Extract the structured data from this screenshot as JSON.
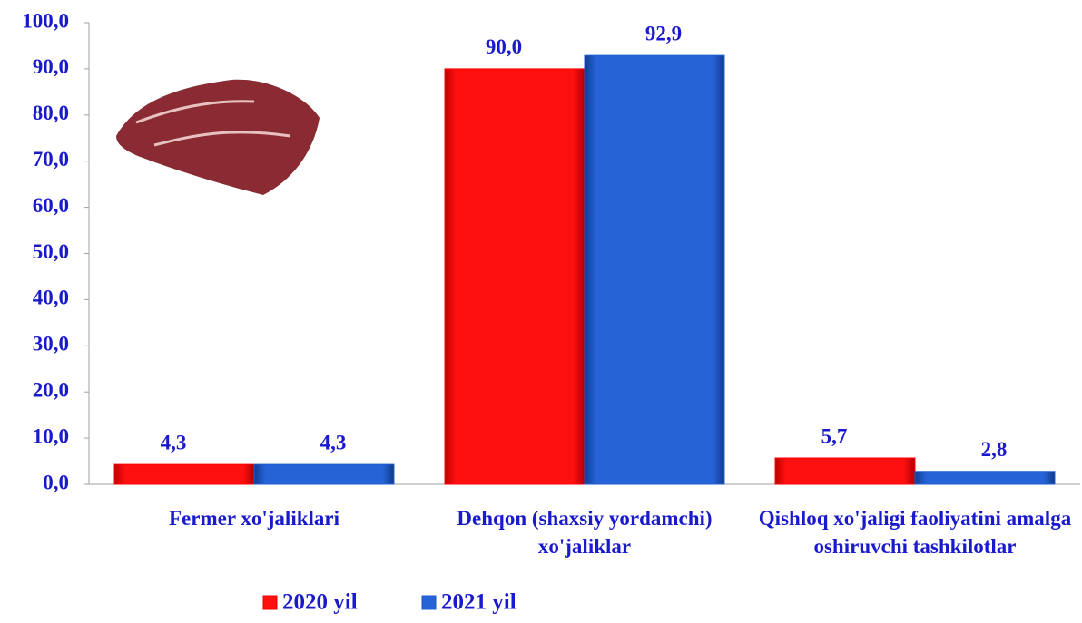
{
  "chart_data": {
    "type": "bar",
    "categories": [
      "Fermer xo'jaliklari",
      "Dehqon (shaxsiy yordamchi) xo'jaliklar",
      "Qishloq xo'jaligi faoliyatini amalga oshiruvchi tashkilotlar"
    ],
    "series": [
      {
        "name": "2020 yil",
        "color": "#ff0000",
        "values": [
          4.3,
          90.0,
          5.7
        ],
        "value_labels": [
          "4,3",
          "90,0",
          "5,7"
        ]
      },
      {
        "name": "2021 yil",
        "color": "#1f5fd0",
        "values": [
          4.3,
          92.9,
          2.8
        ],
        "value_labels": [
          "4,3",
          "92,9",
          "2,8"
        ]
      }
    ],
    "ylim": [
      0,
      100
    ],
    "yticks": [
      {
        "value": 0,
        "label": "0,0"
      },
      {
        "value": 10,
        "label": "10,0"
      },
      {
        "value": 20,
        "label": "20,0"
      },
      {
        "value": 30,
        "label": "30,0"
      },
      {
        "value": 40,
        "label": "40,0"
      },
      {
        "value": 50,
        "label": "50,0"
      },
      {
        "value": 60,
        "label": "60,0"
      },
      {
        "value": 70,
        "label": "70,0"
      },
      {
        "value": 80,
        "label": "80,0"
      },
      {
        "value": 90,
        "label": "90,0"
      },
      {
        "value": 100,
        "label": "100,0"
      }
    ],
    "grid": false,
    "legend": "bottom"
  }
}
